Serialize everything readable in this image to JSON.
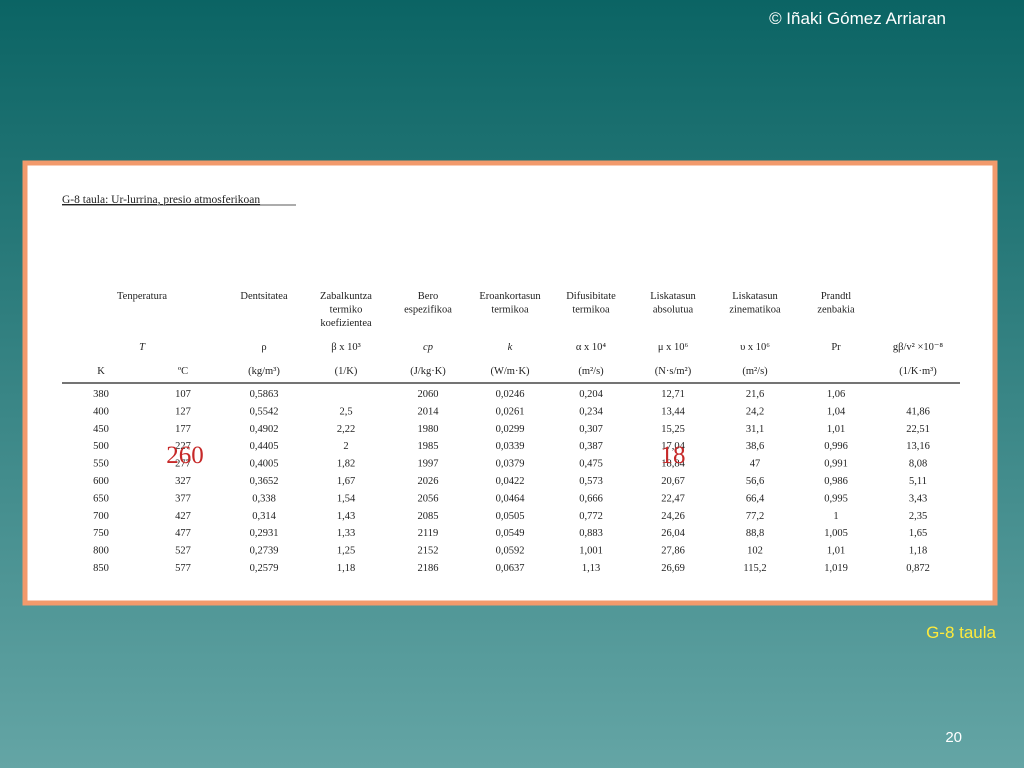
{
  "copyright": "© Iñaki Gómez Arriaran",
  "table_title": "G-8 taula: Ur-lurrina, presio atmosferikoan",
  "group_headers": [
    {
      "name": [
        "Tenperatura"
      ],
      "symbol": "T"
    },
    {
      "name": [
        "Dentsitatea"
      ],
      "symbol": "ρ"
    },
    {
      "name": [
        "Zabalkuntza",
        "termiko",
        "koefizientea"
      ],
      "symbol": "β x 10³"
    },
    {
      "name": [
        "Bero",
        "espezifikoa"
      ],
      "symbol": "cp"
    },
    {
      "name": [
        "Eroankortasun",
        "termikoa"
      ],
      "symbol": "k"
    },
    {
      "name": [
        "Difusibitate",
        "termikoa"
      ],
      "symbol": "α x 10⁴"
    },
    {
      "name": [
        "Liskatasun",
        "absolutua"
      ],
      "symbol": "μ x 10⁶"
    },
    {
      "name": [
        "Liskatasun",
        "zinematikoa"
      ],
      "symbol": "υ x 10⁶"
    },
    {
      "name": [
        "Prandtl",
        "zenbakia"
      ],
      "symbol": "Pr"
    },
    {
      "name": [],
      "symbol": "gβ/v² ×10⁻⁸"
    }
  ],
  "units": [
    "K",
    "ºC",
    "(kg/m³)",
    "(1/K)",
    "(J/kg·K)",
    "(W/m·K)",
    "(m²/s)",
    "(N·s/m²)",
    "(m²/s)",
    null,
    "(1/K·m³)"
  ],
  "rows": [
    [
      "380",
      "107",
      "0,5863",
      null,
      "2060",
      "0,0246",
      "0,204",
      "12,71",
      "21,6",
      "1,06",
      null
    ],
    [
      "400",
      "127",
      "0,5542",
      "2,5",
      "2014",
      "0,0261",
      "0,234",
      "13,44",
      "24,2",
      "1,04",
      "41,86"
    ],
    [
      "450",
      "177",
      "0,4902",
      "2,22",
      "1980",
      "0,0299",
      "0,307",
      "15,25",
      "31,1",
      "1,01",
      "22,51"
    ],
    [
      "500",
      "227",
      "0,4405",
      "2",
      "1985",
      "0,0339",
      "0,387",
      "17,04",
      "38,6",
      "0,996",
      "13,16"
    ],
    [
      "550",
      "277",
      "0,4005",
      "1,82",
      "1997",
      "0,0379",
      "0,475",
      "18,84",
      "47",
      "0,991",
      "8,08"
    ],
    [
      "600",
      "327",
      "0,3652",
      "1,67",
      "2026",
      "0,0422",
      "0,573",
      "20,67",
      "56,6",
      "0,986",
      "5,11"
    ],
    [
      "650",
      "377",
      "0,338",
      "1,54",
      "2056",
      "0,0464",
      "0,666",
      "22,47",
      "66,4",
      "0,995",
      "3,43"
    ],
    [
      "700",
      "427",
      "0,314",
      "1,43",
      "2085",
      "0,0505",
      "0,772",
      "24,26",
      "77,2",
      "1",
      "2,35"
    ],
    [
      "750",
      "477",
      "0,2931",
      "1,33",
      "2119",
      "0,0549",
      "0,883",
      "26,04",
      "88,8",
      "1,005",
      "1,65"
    ],
    [
      "800",
      "527",
      "0,2739",
      "1,25",
      "2152",
      "0,0592",
      "1,001",
      "27,86",
      "102",
      "1,01",
      "1,18"
    ],
    [
      "850",
      "577",
      "0,2579",
      "1,18",
      "2186",
      "0,0637",
      "1,13",
      "26,69",
      "115,2",
      "1,019",
      "0,872"
    ]
  ],
  "overlays": [
    "260",
    "18"
  ],
  "caption": "G-8 taula",
  "page_number": "20"
}
